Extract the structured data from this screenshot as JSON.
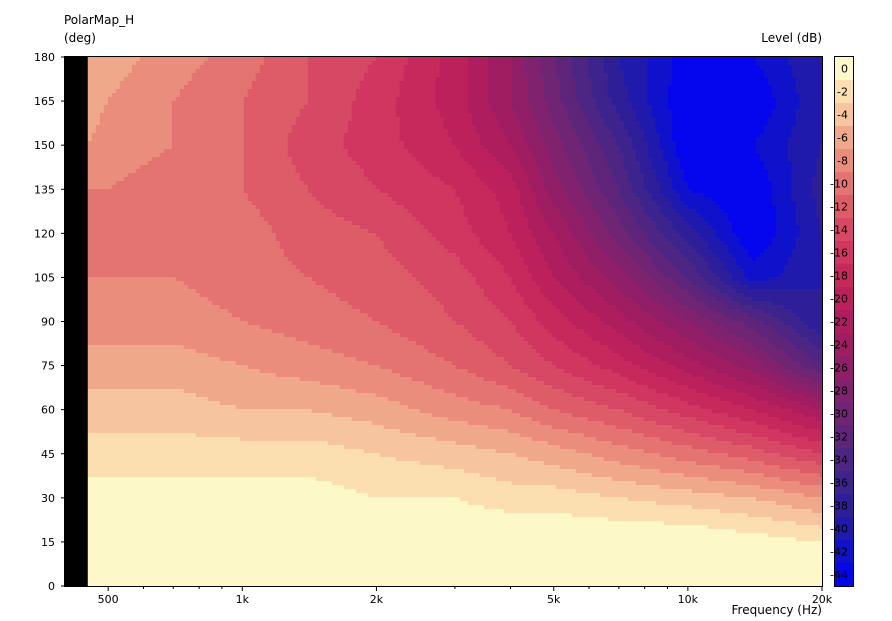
{
  "chart_data": {
    "type": "heatmap",
    "title": "PolarMap_H",
    "ylabel": "(deg)",
    "xlabel": "Frequency  (Hz)",
    "colorbar_label": "Level  (dB)",
    "x_scale": "log",
    "xlim": [
      400,
      20000
    ],
    "ylim": [
      0,
      180
    ],
    "x_ticks": [
      {
        "value": 500,
        "label": "500"
      },
      {
        "value": 1000,
        "label": "1k"
      },
      {
        "value": 2000,
        "label": "2k"
      },
      {
        "value": 5000,
        "label": "5k"
      },
      {
        "value": 10000,
        "label": "10k"
      },
      {
        "value": 20000,
        "label": "20k"
      }
    ],
    "x_minor_ticks": [
      600,
      700,
      800,
      900,
      3000,
      4000,
      6000,
      7000,
      8000,
      9000
    ],
    "y_ticks": [
      0,
      15,
      30,
      45,
      60,
      75,
      90,
      105,
      120,
      135,
      150,
      165,
      180
    ],
    "colorbar_ticks": [
      0,
      -2,
      -4,
      -6,
      -8,
      -10,
      -12,
      -14,
      -16,
      -18,
      -20,
      -22,
      -24,
      -26,
      -28,
      -30,
      -32,
      -34,
      -36,
      -38,
      -40,
      -42,
      -44
    ],
    "level_range": [
      -46,
      0
    ],
    "no_data_below_hz": 450,
    "frequencies": [
      450,
      500,
      700,
      1000,
      1400,
      2000,
      3000,
      4000,
      5000,
      7000,
      10000,
      14000,
      20000
    ],
    "angles": [
      0,
      15,
      30,
      45,
      60,
      75,
      90,
      105,
      120,
      135,
      150,
      165,
      180
    ],
    "levels_db": [
      [
        0,
        0,
        0,
        0,
        0,
        0,
        0,
        0,
        0,
        0,
        0,
        0,
        0
      ],
      [
        0,
        0,
        0,
        0,
        0,
        0,
        0,
        0,
        0,
        0,
        0,
        -1,
        -2
      ],
      [
        -1,
        -1,
        -1,
        -1,
        -1,
        -2,
        -2,
        -3,
        -3,
        -4,
        -5,
        -6,
        -8
      ],
      [
        -3,
        -3,
        -3,
        -3,
        -3,
        -4,
        -5,
        -6,
        -7,
        -9,
        -11,
        -13,
        -16
      ],
      [
        -5,
        -5,
        -5,
        -6,
        -6,
        -7,
        -9,
        -10,
        -12,
        -14,
        -17,
        -20,
        -24
      ],
      [
        -7,
        -7,
        -7,
        -8,
        -9,
        -10,
        -12,
        -14,
        -16,
        -19,
        -23,
        -27,
        -34
      ],
      [
        -9,
        -9,
        -9,
        -10,
        -11,
        -12,
        -14,
        -16,
        -19,
        -23,
        -28,
        -33,
        -40
      ],
      [
        -10,
        -10,
        -10,
        -11,
        -12,
        -13,
        -15,
        -18,
        -22,
        -27,
        -34,
        -43,
        -40
      ],
      [
        -11,
        -11,
        -11,
        -11,
        -13,
        -14,
        -17,
        -20,
        -24,
        -31,
        -39,
        -46,
        -40
      ],
      [
        -10,
        -10,
        -11,
        -12,
        -14,
        -16,
        -18,
        -21,
        -27,
        -34,
        -44,
        -46,
        -39
      ],
      [
        -8,
        -9,
        -10,
        -12,
        -15,
        -17,
        -20,
        -24,
        -29,
        -36,
        -46,
        -44,
        -40
      ],
      [
        -7,
        -8,
        -10,
        -12,
        -14,
        -17,
        -21,
        -26,
        -31,
        -39,
        -46,
        -46,
        -40
      ],
      [
        -7,
        -7,
        -9,
        -11,
        -14,
        -16,
        -21,
        -26,
        -32,
        -40,
        -45,
        -44,
        -40
      ]
    ],
    "grid": false,
    "legend": "right colorbar"
  },
  "colorscale": {
    "levels": [
      0,
      -2,
      -4,
      -6,
      -8,
      -10,
      -12,
      -14,
      -16,
      -18,
      -20,
      -22,
      -24,
      -26,
      -28,
      -30,
      -32,
      -34,
      -36,
      -38,
      -40,
      -42,
      -44
    ],
    "colors": [
      "#fdf8c8",
      "#fbdfb0",
      "#f6c5a0",
      "#f0a88a",
      "#ea8d7c",
      "#e37471",
      "#dd5c67",
      "#d74864",
      "#d03660",
      "#c7295d",
      "#bc215c",
      "#ae1e5e",
      "#a01d62",
      "#901f67",
      "#80226d",
      "#6f2474",
      "#5e257b",
      "#4d2583",
      "#3d238c",
      "#2e1f98",
      "#1f1aac",
      "#1012cb",
      "#0505ee"
    ],
    "below_color": "#000000",
    "nodata_color": "#000000"
  }
}
